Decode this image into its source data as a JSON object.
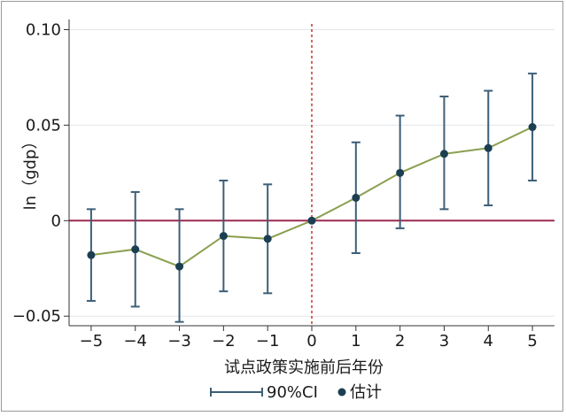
{
  "chart_data": {
    "type": "line",
    "title": "",
    "xlabel": "试点政策实施前后年份",
    "ylabel": "ln（gdp）",
    "x": [
      -5,
      -4,
      -3,
      -2,
      -1,
      0,
      1,
      2,
      3,
      4,
      5
    ],
    "x_tick_labels": [
      "−5",
      "−4",
      "−3",
      "−2",
      "−1",
      "0",
      "1",
      "2",
      "3",
      "4",
      "5"
    ],
    "xlim": [
      -5.5,
      5.5
    ],
    "ylim": [
      -0.055,
      0.103
    ],
    "y_ticks": [
      -0.05,
      0,
      0.05,
      0.1
    ],
    "y_tick_labels": [
      "−0.05",
      "0",
      "0.05",
      "0.10"
    ],
    "grid": true,
    "series": [
      {
        "name": "估计",
        "values": [
          -0.018,
          -0.015,
          -0.024,
          -0.008,
          -0.0095,
          0,
          0.012,
          0.025,
          0.035,
          0.038,
          0.049
        ],
        "ci_low": [
          -0.042,
          -0.045,
          -0.053,
          -0.037,
          -0.038,
          0,
          -0.017,
          -0.004,
          0.006,
          0.008,
          0.021
        ],
        "ci_high": [
          0.006,
          0.015,
          0.006,
          0.021,
          0.019,
          0,
          0.041,
          0.055,
          0.065,
          0.068,
          0.077
        ]
      }
    ],
    "reference_lines": {
      "h": 0,
      "v": 0
    },
    "legend": {
      "position": "bottom",
      "items": [
        {
          "label": "90%CI",
          "symbol": "errorbar"
        },
        {
          "label": "估计",
          "symbol": "dot"
        }
      ]
    },
    "colors": {
      "ci": "#3d5f78",
      "point": "#1b3e52",
      "line": "#8aa050",
      "hline": "#9c2a50",
      "vline": "#c0392b",
      "grid": "#e3e7ec"
    }
  }
}
